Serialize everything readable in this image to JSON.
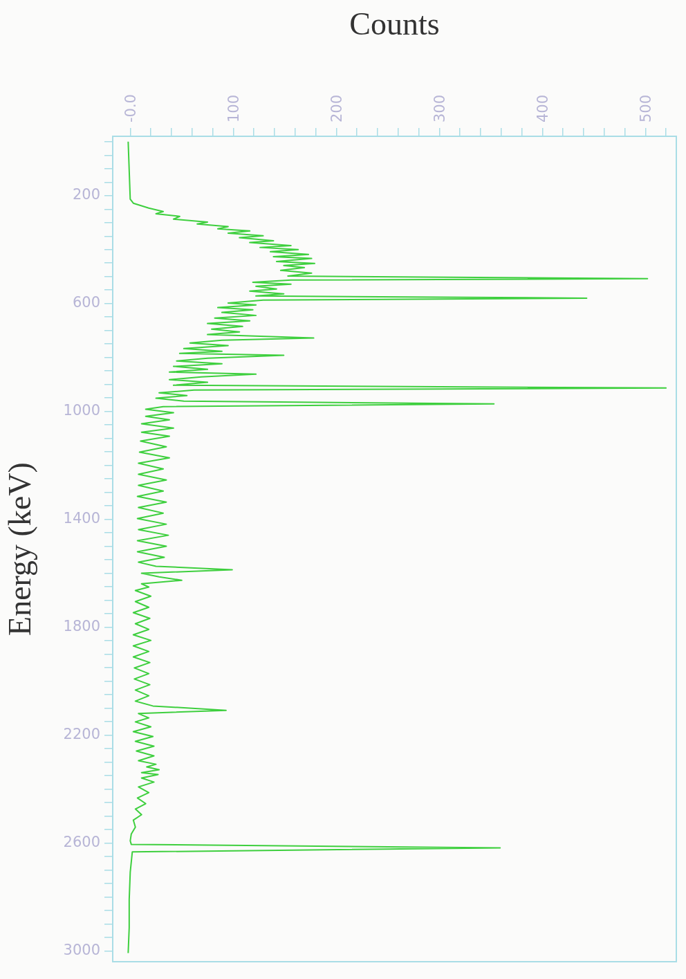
{
  "chart_data": {
    "type": "line",
    "xlabel": "Counts",
    "ylabel": "Energy (keV)",
    "color": "#3ecf3e",
    "marker": "none",
    "ylim": [
      3040,
      -20
    ],
    "xlim": [
      -17,
      530
    ],
    "yticks": [
      {
        "value": 0,
        "label": null
      },
      {
        "value": 50,
        "label": null
      },
      {
        "value": 100,
        "label": null
      },
      {
        "value": 150,
        "label": null
      },
      200,
      {
        "value": 250,
        "label": null
      },
      {
        "value": 300,
        "label": null
      },
      {
        "value": 350,
        "label": null
      },
      {
        "value": 400,
        "label": null
      },
      {
        "value": 450,
        "label": null
      },
      {
        "value": 500,
        "label": null
      },
      {
        "value": 550,
        "label": null
      },
      600,
      {
        "value": 650,
        "label": null
      },
      {
        "value": 700,
        "label": null
      },
      {
        "value": 750,
        "label": null
      },
      {
        "value": 800,
        "label": null
      },
      {
        "value": 850,
        "label": null
      },
      {
        "value": 900,
        "label": null
      },
      {
        "value": 950,
        "label": null
      },
      1000,
      {
        "value": 1050,
        "label": null
      },
      {
        "value": 1100,
        "label": null
      },
      {
        "value": 1150,
        "label": null
      },
      {
        "value": 1200,
        "label": null
      },
      {
        "value": 1250,
        "label": null
      },
      {
        "value": 1300,
        "label": null
      },
      {
        "value": 1350,
        "label": null
      },
      1400,
      {
        "value": 1450,
        "label": null
      },
      {
        "value": 1500,
        "label": null
      },
      {
        "value": 1550,
        "label": null
      },
      {
        "value": 1600,
        "label": null
      },
      {
        "value": 1650,
        "label": null
      },
      {
        "value": 1700,
        "label": null
      },
      {
        "value": 1750,
        "label": null
      },
      1800,
      {
        "value": 1850,
        "label": null
      },
      {
        "value": 1900,
        "label": null
      },
      {
        "value": 1950,
        "label": null
      },
      {
        "value": 2000,
        "label": null
      },
      {
        "value": 2050,
        "label": null
      },
      {
        "value": 2100,
        "label": null
      },
      {
        "value": 2150,
        "label": null
      },
      2200,
      {
        "value": 2250,
        "label": null
      },
      {
        "value": 2300,
        "label": null
      },
      {
        "value": 2350,
        "label": null
      },
      {
        "value": 2400,
        "label": null
      },
      {
        "value": 2450,
        "label": null
      },
      {
        "value": 2500,
        "label": null
      },
      {
        "value": 2550,
        "label": null
      },
      2600,
      {
        "value": 2650,
        "label": null
      },
      {
        "value": 2700,
        "label": null
      },
      {
        "value": 2750,
        "label": null
      },
      {
        "value": 2800,
        "label": null
      },
      {
        "value": 2850,
        "label": null
      },
      {
        "value": 2900,
        "label": null
      },
      {
        "value": 2950,
        "label": null
      },
      3000
    ],
    "xticks": [
      {
        "value": 0,
        "label": "-0.0"
      },
      {
        "value": 20,
        "label": null
      },
      {
        "value": 40,
        "label": null
      },
      {
        "value": 60,
        "label": null
      },
      {
        "value": 80,
        "label": null
      },
      100,
      {
        "value": 120,
        "label": null
      },
      {
        "value": 140,
        "label": null
      },
      {
        "value": 160,
        "label": null
      },
      {
        "value": 180,
        "label": null
      },
      200,
      {
        "value": 220,
        "label": null
      },
      {
        "value": 240,
        "label": null
      },
      {
        "value": 260,
        "label": null
      },
      {
        "value": 280,
        "label": null
      },
      300,
      {
        "value": 320,
        "label": null
      },
      {
        "value": 340,
        "label": null
      },
      {
        "value": 360,
        "label": null
      },
      {
        "value": 380,
        "label": null
      },
      400,
      {
        "value": 420,
        "label": null
      },
      {
        "value": 440,
        "label": null
      },
      {
        "value": 460,
        "label": null
      },
      {
        "value": 480,
        "label": null
      },
      500,
      {
        "value": 520,
        "label": null
      }
    ],
    "values": [
      0,
      213,
      228,
      246,
      259,
      267,
      277,
      287,
      298,
      305,
      315,
      323,
      331,
      339,
      349,
      356,
      367,
      374,
      385,
      392,
      400,
      408,
      418,
      426,
      433,
      444,
      451,
      459,
      467,
      477,
      487,
      498,
      508,
      513,
      521,
      528,
      536,
      546,
      554,
      564,
      572,
      580,
      587,
      598,
      605,
      615,
      623,
      633,
      644,
      654,
      664,
      674,
      685,
      695,
      705,
      715,
      728,
      736,
      746,
      756,
      767,
      777,
      785,
      792,
      803,
      813,
      823,
      833,
      844,
      854,
      862,
      872,
      882,
      892,
      903,
      913,
      921,
      931,
      941,
      951,
      962,
      972,
      982,
      992,
      1005,
      1018,
      1031,
      1046,
      1062,
      1077,
      1092,
      1110,
      1131,
      1151,
      1172,
      1192,
      1213,
      1233,
      1254,
      1274,
      1295,
      1315,
      1336,
      1356,
      1377,
      1397,
      1418,
      1438,
      1459,
      1479,
      1500,
      1520,
      1541,
      1559,
      1574,
      1587,
      1600,
      1613,
      1626,
      1639,
      1651,
      1664,
      1685,
      1705,
      1726,
      1746,
      1767,
      1787,
      1808,
      1828,
      1849,
      1869,
      1890,
      1910,
      1931,
      1951,
      1972,
      1992,
      2013,
      2033,
      2054,
      2074,
      2092,
      2108,
      2120,
      2136,
      2151,
      2169,
      2187,
      2205,
      2223,
      2241,
      2259,
      2277,
      2295,
      2308,
      2318,
      2328,
      2339,
      2346,
      2359,
      2374,
      2392,
      2413,
      2433,
      2454,
      2474,
      2495,
      2515,
      2541,
      2567,
      2592,
      2605,
      2618,
      2633,
      2708,
      2810,
      2913,
      3008
    ],
    "x": [
      -2,
      0,
      3,
      18,
      32,
      25,
      48,
      42,
      75,
      65,
      95,
      85,
      116,
      95,
      129,
      106,
      139,
      116,
      156,
      126,
      163,
      136,
      173,
      139,
      176,
      142,
      179,
      149,
      169,
      146,
      176,
      153,
      502,
      156,
      119,
      156,
      122,
      142,
      116,
      149,
      122,
      443,
      129,
      95,
      122,
      85,
      119,
      89,
      122,
      82,
      116,
      75,
      109,
      79,
      106,
      75,
      178,
      89,
      58,
      95,
      52,
      89,
      48,
      149,
      75,
      45,
      89,
      42,
      75,
      38,
      122,
      69,
      38,
      75,
      42,
      520,
      62,
      28,
      55,
      25,
      52,
      353,
      32,
      15,
      42,
      15,
      38,
      11,
      42,
      11,
      38,
      10,
      35,
      9,
      38,
      8,
      32,
      8,
      35,
      8,
      32,
      7,
      35,
      8,
      32,
      7,
      35,
      8,
      37,
      7,
      35,
      7,
      33,
      8,
      25,
      99,
      11,
      28,
      50,
      11,
      18,
      5,
      20,
      5,
      18,
      3,
      19,
      5,
      18,
      3,
      20,
      3,
      18,
      3,
      19,
      4,
      18,
      4,
      19,
      5,
      18,
      5,
      22,
      93,
      8,
      18,
      5,
      20,
      3,
      22,
      5,
      23,
      6,
      23,
      8,
      25,
      16,
      28,
      11,
      27,
      11,
      23,
      8,
      18,
      7,
      15,
      5,
      11,
      3,
      5,
      1,
      0,
      1,
      359,
      2,
      0,
      -1,
      -1,
      -2
    ]
  }
}
